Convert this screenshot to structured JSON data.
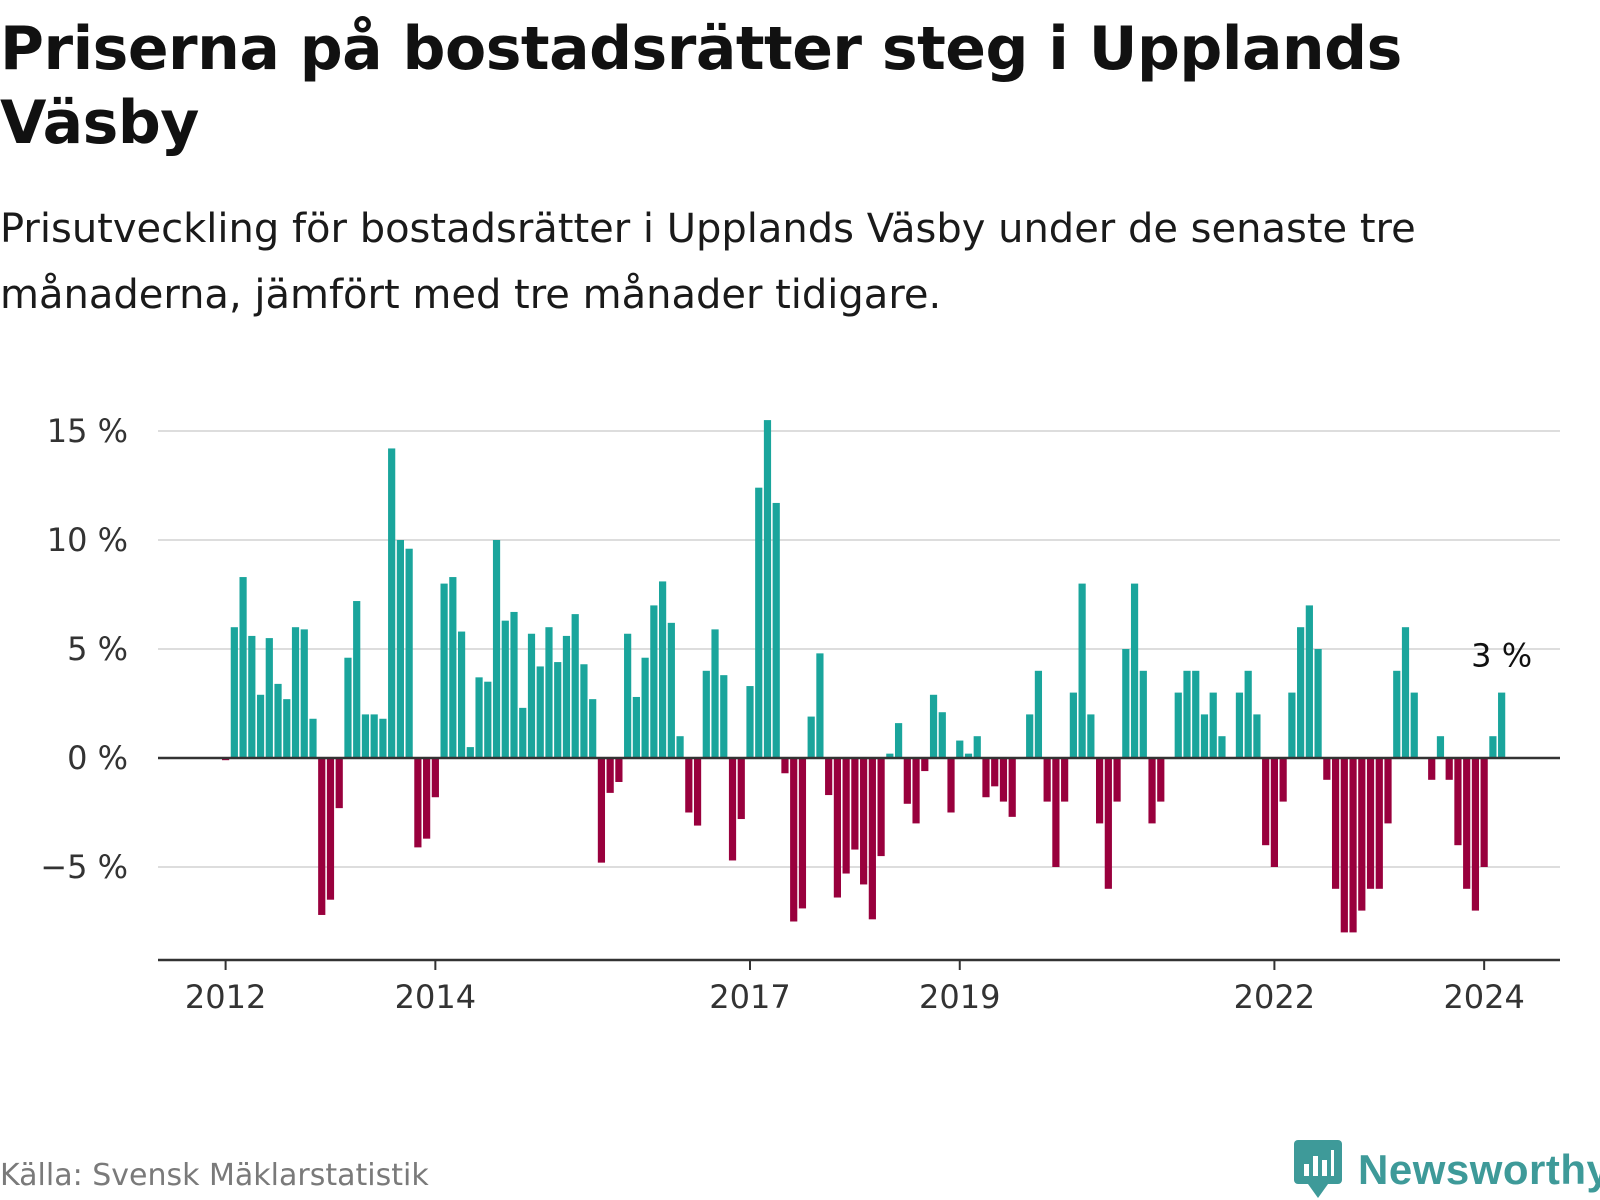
{
  "header": {
    "title": "Priserna på bostadsrätter steg i Upplands Väsby",
    "subtitle": "Prisutveckling för bostadsrätter i Upplands Väsby under de senaste tre månaderna, jämfört med tre månader tidigare."
  },
  "footer": {
    "source": "Källa: Svensk Mäklarstatistik",
    "logo_text": "Newsworthy"
  },
  "colors": {
    "positive": "#1aa59c",
    "negative": "#99003d",
    "grid": "#dddddd",
    "axis": "#333333",
    "logo": "#3e9a99"
  },
  "chart_data": {
    "type": "bar",
    "title": "Priserna på bostadsrätter steg i Upplands Väsby",
    "xlabel": "",
    "ylabel": "",
    "ylim": [
      -9,
      15.5
    ],
    "y_ticks": [
      -5,
      0,
      5,
      10,
      15
    ],
    "y_tick_labels": [
      "−5 %",
      "0 %",
      "5 %",
      "10 %",
      "15 %"
    ],
    "x_tick_labels": [
      {
        "label": "2012",
        "index": 0
      },
      {
        "label": "2014",
        "index": 24
      },
      {
        "label": "2017",
        "index": 60
      },
      {
        "label": "2019",
        "index": 84
      },
      {
        "label": "2022",
        "index": 120
      },
      {
        "label": "2024",
        "index": 144
      }
    ],
    "last_value_label": "3 %",
    "start": "2012-01",
    "end": "2024-03",
    "values": [
      -0.1,
      6.0,
      8.3,
      5.6,
      2.9,
      5.5,
      3.4,
      2.7,
      6.0,
      5.9,
      1.8,
      -7.2,
      -6.5,
      -2.3,
      4.6,
      7.2,
      2.0,
      2.0,
      1.8,
      14.2,
      10.0,
      9.6,
      -4.1,
      -3.7,
      -1.8,
      8.0,
      8.3,
      5.8,
      0.5,
      3.7,
      3.5,
      10.0,
      6.3,
      6.7,
      2.3,
      5.7,
      4.2,
      6.0,
      4.4,
      5.6,
      6.6,
      4.3,
      2.7,
      -4.8,
      -1.6,
      -1.1,
      5.7,
      2.8,
      4.6,
      7.0,
      8.1,
      6.2,
      1.0,
      -2.5,
      -3.1,
      4.0,
      5.9,
      3.8,
      -4.7,
      -2.8,
      3.3,
      12.4,
      15.5,
      11.7,
      -0.7,
      -7.5,
      -6.9,
      1.9,
      4.8,
      -1.7,
      -6.4,
      -5.3,
      -4.2,
      -5.8,
      -7.4,
      -4.5,
      0.2,
      1.6,
      -2.1,
      -3.0,
      -0.6,
      2.9,
      2.1,
      -2.5,
      0.8,
      0.2,
      1.0,
      -1.8,
      -1.3,
      -2.0,
      -2.7,
      0.0,
      2.0,
      4.0,
      -2.0,
      -5.0,
      -2.0,
      3.0,
      8.0,
      2.0,
      -3.0,
      -6.0,
      -2.0,
      5.0,
      8.0,
      4.0,
      -3.0,
      -2.0,
      0.0,
      3.0,
      4.0,
      4.0,
      2.0,
      3.0,
      1.0,
      0.0,
      3.0,
      4.0,
      2.0,
      -4.0,
      -5.0,
      -2.0,
      3.0,
      6.0,
      7.0,
      5.0,
      -1.0,
      -6.0,
      -8.0,
      -8.0,
      -7.0,
      -6.0,
      -6.0,
      -3.0,
      4.0,
      6.0,
      3.0,
      0.0,
      -1.0,
      1.0,
      -1.0,
      -4.0,
      -6.0,
      -7.0,
      -5.0,
      1.0,
      3.0
    ]
  }
}
